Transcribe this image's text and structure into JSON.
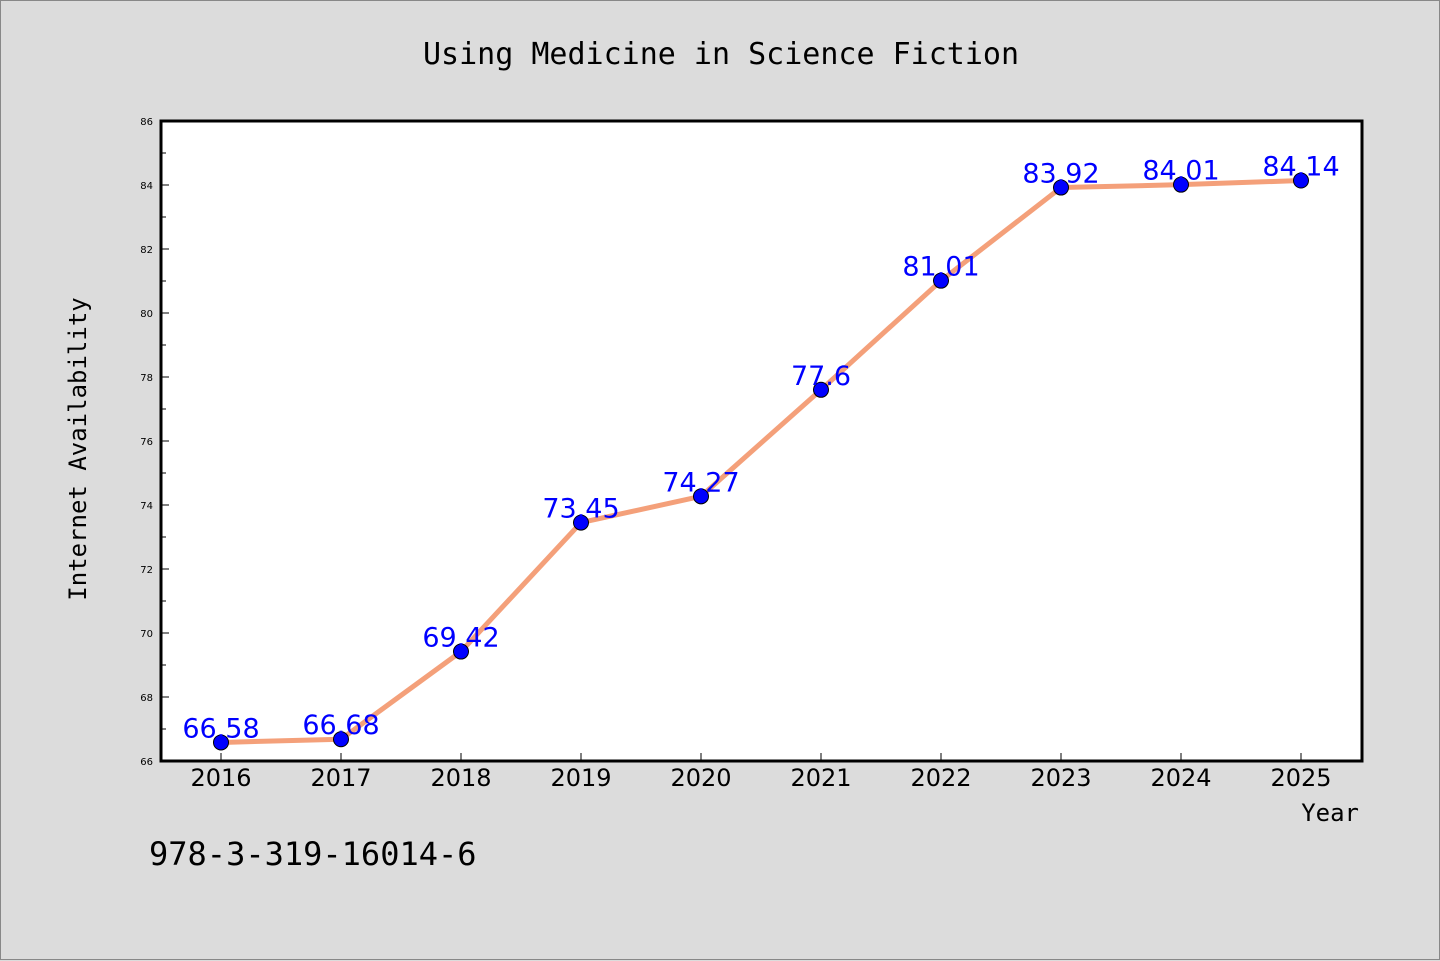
{
  "chart_data": {
    "type": "line",
    "title": "Using Medicine in Science Fiction",
    "xlabel": "Year",
    "ylabel": "Internet Availability",
    "categories": [
      "2016",
      "2017",
      "2018",
      "2019",
      "2020",
      "2021",
      "2022",
      "2023",
      "2024",
      "2025"
    ],
    "series": [
      {
        "values": [
          66.58,
          66.68,
          69.42,
          73.45,
          74.27,
          77.6,
          81.01,
          83.92,
          84.01,
          84.14
        ],
        "data_labels": [
          "66.58",
          "66.68",
          "69.42",
          "73.45",
          "74.27",
          "77.6",
          "81.01",
          "83.92",
          "84.01",
          "84.14"
        ]
      }
    ],
    "ylim": [
      66,
      86
    ],
    "yticks": [
      66,
      68,
      70,
      72,
      74,
      76,
      78,
      80,
      82,
      84,
      86
    ],
    "grid": false,
    "legend": "none",
    "colors": {
      "line": "#f4a07a",
      "marker": "#0000ff",
      "data_label": "#0000ff",
      "background": "#dcdcdc",
      "plot_background": "#ffffff"
    }
  },
  "footnote": "978-3-319-16014-6"
}
